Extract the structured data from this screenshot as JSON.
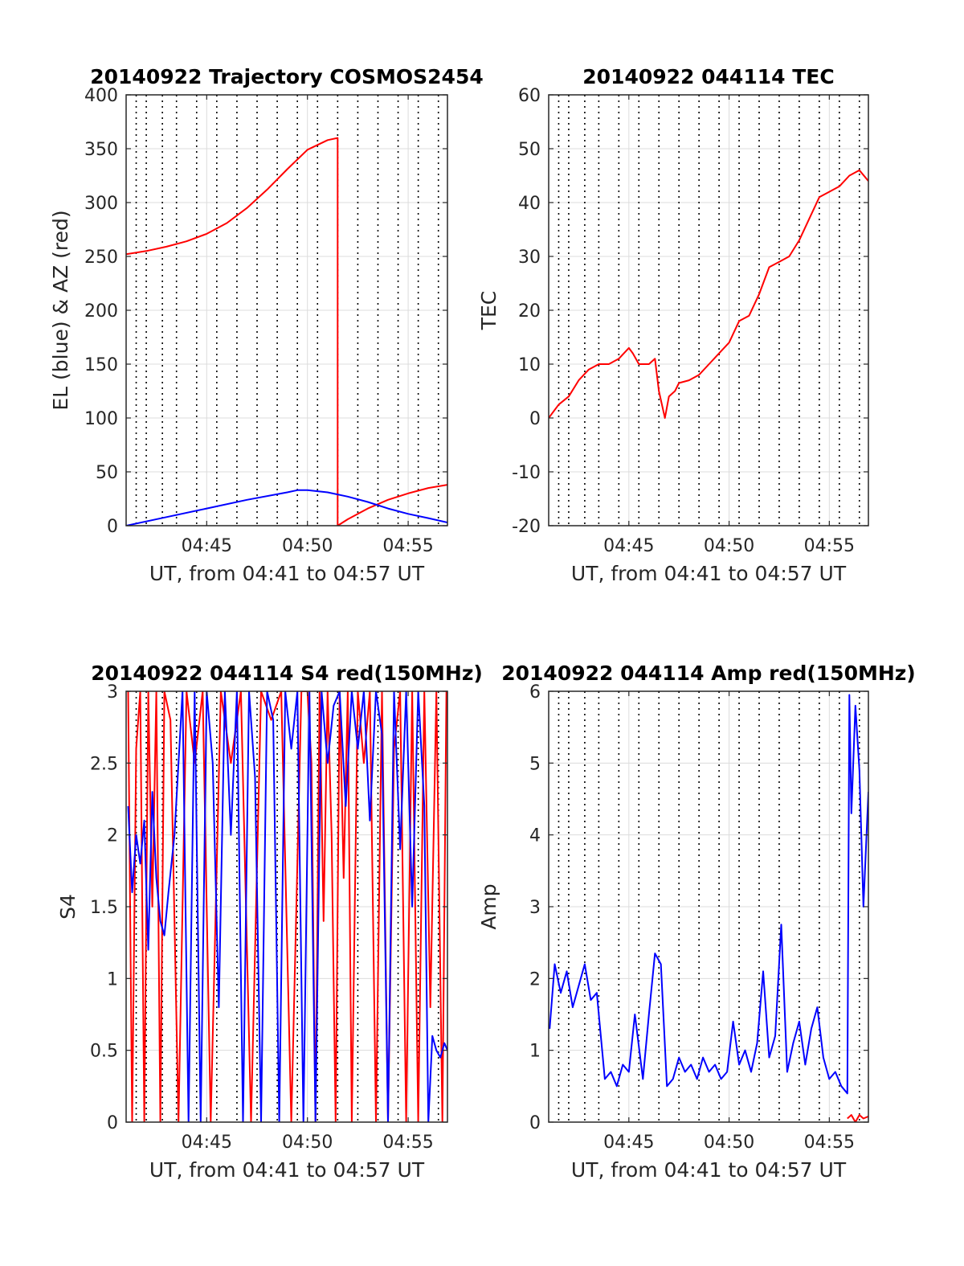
{
  "colors": {
    "red": "#ff0000",
    "blue": "#0000ff",
    "grid_major": "#dcdcdc",
    "grid_dotted": "#000000",
    "axes": "#262626"
  },
  "chart_data": [
    {
      "id": "trajectory",
      "type": "line",
      "title": "20140922 Trajectory COSMOS2454",
      "xlabel": "UT, from 04:41 to 04:57 UT",
      "ylabel": "EL (blue) & AZ (red)",
      "x_unit": "minutes after 04:41 UT",
      "xlim": [
        0,
        15.95
      ],
      "ylim": [
        0,
        400
      ],
      "yticks": [
        0,
        50,
        100,
        150,
        200,
        250,
        300,
        350,
        400
      ],
      "xticks": [
        4,
        9,
        14
      ],
      "xticklabels": [
        "04:45",
        "04:50",
        "04:55"
      ],
      "grid": true,
      "series": [
        {
          "name": "AZ",
          "color": "red",
          "x": [
            0,
            1,
            2,
            3,
            4,
            5,
            6,
            7,
            8,
            9,
            10,
            10.5,
            10.5,
            10.5,
            11,
            12,
            13,
            14,
            15,
            15.95
          ],
          "y": [
            252,
            255,
            259,
            264,
            271,
            281,
            295,
            312,
            331,
            349,
            358,
            360,
            360,
            0,
            6,
            16,
            24,
            30,
            35,
            38
          ]
        },
        {
          "name": "EL",
          "color": "blue",
          "x": [
            0,
            2,
            4,
            6,
            8,
            8.5,
            9,
            10,
            11,
            12,
            13,
            14,
            15,
            15.95
          ],
          "y": [
            0,
            8,
            16,
            24,
            31,
            33,
            33,
            31,
            27,
            22,
            16,
            11,
            7,
            3
          ]
        }
      ]
    },
    {
      "id": "tec",
      "type": "line",
      "title": "20140922 044114 TEC",
      "xlabel": "UT, from 04:41 to 04:57 UT",
      "ylabel": "TEC",
      "x_unit": "minutes after 04:41 UT",
      "xlim": [
        0,
        15.95
      ],
      "ylim": [
        -20,
        60
      ],
      "yticks": [
        -20,
        -10,
        0,
        10,
        20,
        30,
        40,
        50,
        60
      ],
      "xticks": [
        4,
        9,
        14
      ],
      "xticklabels": [
        "04:45",
        "04:50",
        "04:55"
      ],
      "grid": true,
      "series": [
        {
          "name": "TEC",
          "color": "red",
          "x": [
            0,
            0.5,
            1,
            1.5,
            2,
            2.5,
            3,
            3.5,
            4,
            4.2,
            4.5,
            5,
            5.3,
            5.5,
            5.8,
            6,
            6.3,
            6.5,
            7,
            7.5,
            8,
            8.5,
            9,
            9.5,
            10,
            10.5,
            11,
            11.5,
            12,
            12.5,
            13,
            13.5,
            14,
            14.5,
            15,
            15.5,
            15.95
          ],
          "y": [
            0,
            2.5,
            4,
            7,
            9,
            10,
            10,
            11,
            13,
            12,
            10,
            10,
            11,
            5,
            0,
            4,
            5,
            6.5,
            7,
            8,
            10,
            12,
            14,
            18,
            19,
            23,
            28,
            29,
            30,
            33,
            37,
            41,
            42,
            43,
            45,
            46,
            44
          ]
        }
      ]
    },
    {
      "id": "s4",
      "type": "line",
      "title": "20140922 044114 S4 red(150MHz)",
      "xlabel": "UT, from 04:41 to 04:57 UT",
      "ylabel": "S4",
      "x_unit": "minutes after 04:41 UT",
      "xlim": [
        0,
        15.95
      ],
      "ylim": [
        0,
        3
      ],
      "yticks": [
        0,
        0.5,
        1,
        1.5,
        2,
        2.5,
        3
      ],
      "yticklabels": [
        "0",
        "0.5",
        "1",
        "1.5",
        "2",
        "2.5",
        "3"
      ],
      "xticks": [
        4,
        9,
        14
      ],
      "xticklabels": [
        "04:45",
        "04:50",
        "04:55"
      ],
      "grid": true,
      "series": [
        {
          "name": "S4 red",
          "color": "red",
          "x": [
            0.1,
            0.3,
            0.5,
            0.7,
            0.9,
            1.1,
            1.3,
            1.5,
            1.7,
            1.9,
            2.2,
            2.6,
            3.0,
            3.4,
            3.8,
            4.2,
            4.7,
            5.2,
            5.7,
            6.2,
            6.7,
            7.2,
            7.7,
            8.2,
            8.7,
            9.0,
            9.2,
            9.4,
            9.6,
            9.8,
            10.0,
            10.2,
            10.4,
            10.6,
            10.8,
            11.0,
            11.2,
            11.5,
            11.8,
            12.1,
            12.4,
            12.7,
            13.0,
            13.3,
            13.6,
            13.9,
            14.2,
            14.5,
            14.8,
            15.1,
            15.4,
            15.7,
            15.9
          ],
          "y": [
            3,
            0,
            2.6,
            3,
            0,
            3,
            1.5,
            3,
            0,
            3,
            2.8,
            0,
            3,
            2.5,
            3,
            0,
            3,
            2.5,
            3,
            0,
            3,
            2.8,
            3,
            0,
            3,
            3,
            2.5,
            0,
            3,
            1.4,
            3,
            2.0,
            0,
            3,
            1.7,
            3,
            0,
            3,
            2.5,
            3,
            0,
            3,
            0,
            2.6,
            3,
            0,
            3,
            0,
            3,
            0.8,
            3,
            0,
            3
          ]
        },
        {
          "name": "S4 blue",
          "color": "blue",
          "x": [
            0.1,
            0.3,
            0.5,
            0.7,
            0.9,
            1.1,
            1.3,
            1.5,
            1.7,
            1.9,
            2.1,
            2.4,
            2.8,
            3.1,
            3.4,
            3.7,
            4.0,
            4.3,
            4.6,
            4.9,
            5.2,
            5.5,
            5.8,
            6.1,
            6.4,
            6.7,
            7.0,
            7.3,
            7.6,
            7.9,
            8.2,
            8.5,
            8.8,
            9.1,
            9.4,
            9.7,
            10.0,
            10.3,
            10.6,
            10.9,
            11.2,
            11.5,
            11.8,
            12.1,
            12.4,
            12.7,
            13.0,
            13.3,
            13.6,
            13.9,
            14.2,
            14.5,
            14.8,
            15.0,
            15.2,
            15.4,
            15.6,
            15.8,
            15.95
          ],
          "y": [
            2.2,
            1.6,
            2.0,
            1.8,
            2.1,
            1.2,
            2.3,
            1.7,
            1.4,
            1.3,
            1.6,
            2.0,
            3,
            0,
            3,
            0,
            3,
            2.5,
            0.8,
            3,
            2.0,
            3,
            0,
            3,
            2.4,
            0,
            3,
            2.8,
            0,
            3,
            2.6,
            3,
            0,
            3,
            0,
            3,
            2.5,
            2.9,
            3,
            2.2,
            3,
            2.6,
            3,
            2.1,
            3,
            2.7,
            0,
            3,
            1.9,
            3,
            1.5,
            3,
            2.2,
            0,
            0.6,
            0.5,
            0.45,
            0.55,
            0.5
          ]
        }
      ]
    },
    {
      "id": "amp",
      "type": "line",
      "title": "20140922 044114 Amp red(150MHz)",
      "xlabel": "UT, from 04:41 to 04:57 UT",
      "ylabel": "Amp",
      "x_unit": "minutes after 04:41 UT",
      "xlim": [
        0,
        15.95
      ],
      "ylim": [
        0,
        6
      ],
      "yticks": [
        0,
        1,
        2,
        3,
        4,
        5,
        6
      ],
      "xticks": [
        4,
        9,
        14
      ],
      "xticklabels": [
        "04:45",
        "04:50",
        "04:55"
      ],
      "grid": true,
      "series": [
        {
          "name": "Amp blue",
          "color": "blue",
          "x": [
            0.05,
            0.3,
            0.6,
            0.9,
            1.2,
            1.5,
            1.8,
            2.1,
            2.4,
            2.8,
            3.1,
            3.4,
            3.7,
            4.0,
            4.3,
            4.7,
            5.0,
            5.3,
            5.6,
            5.9,
            6.2,
            6.5,
            6.8,
            7.1,
            7.4,
            7.7,
            8.0,
            8.3,
            8.6,
            8.9,
            9.2,
            9.5,
            9.8,
            10.1,
            10.4,
            10.7,
            11.0,
            11.3,
            11.6,
            11.9,
            12.2,
            12.5,
            12.8,
            13.1,
            13.4,
            13.7,
            14.0,
            14.3,
            14.6,
            14.9,
            15.0,
            15.1,
            15.3,
            15.5,
            15.7,
            15.95
          ],
          "y": [
            1.3,
            2.2,
            1.8,
            2.1,
            1.6,
            1.9,
            2.2,
            1.7,
            1.8,
            0.6,
            0.7,
            0.5,
            0.8,
            0.7,
            1.5,
            0.6,
            1.5,
            2.35,
            2.2,
            0.5,
            0.6,
            0.9,
            0.7,
            0.8,
            0.6,
            0.9,
            0.7,
            0.8,
            0.6,
            0.7,
            1.4,
            0.8,
            1.0,
            0.7,
            1.1,
            2.1,
            0.9,
            1.2,
            2.75,
            0.7,
            1.1,
            1.4,
            0.8,
            1.3,
            1.6,
            0.9,
            0.6,
            0.7,
            0.5,
            0.4,
            5.95,
            4.3,
            5.8,
            4.9,
            3.0,
            4.6
          ]
        },
        {
          "name": "Amp red",
          "color": "red",
          "x": [
            14.9,
            15.1,
            15.3,
            15.5,
            15.7,
            15.95
          ],
          "y": [
            0.05,
            0.1,
            0.0,
            0.1,
            0.05,
            0.08
          ]
        }
      ]
    }
  ]
}
